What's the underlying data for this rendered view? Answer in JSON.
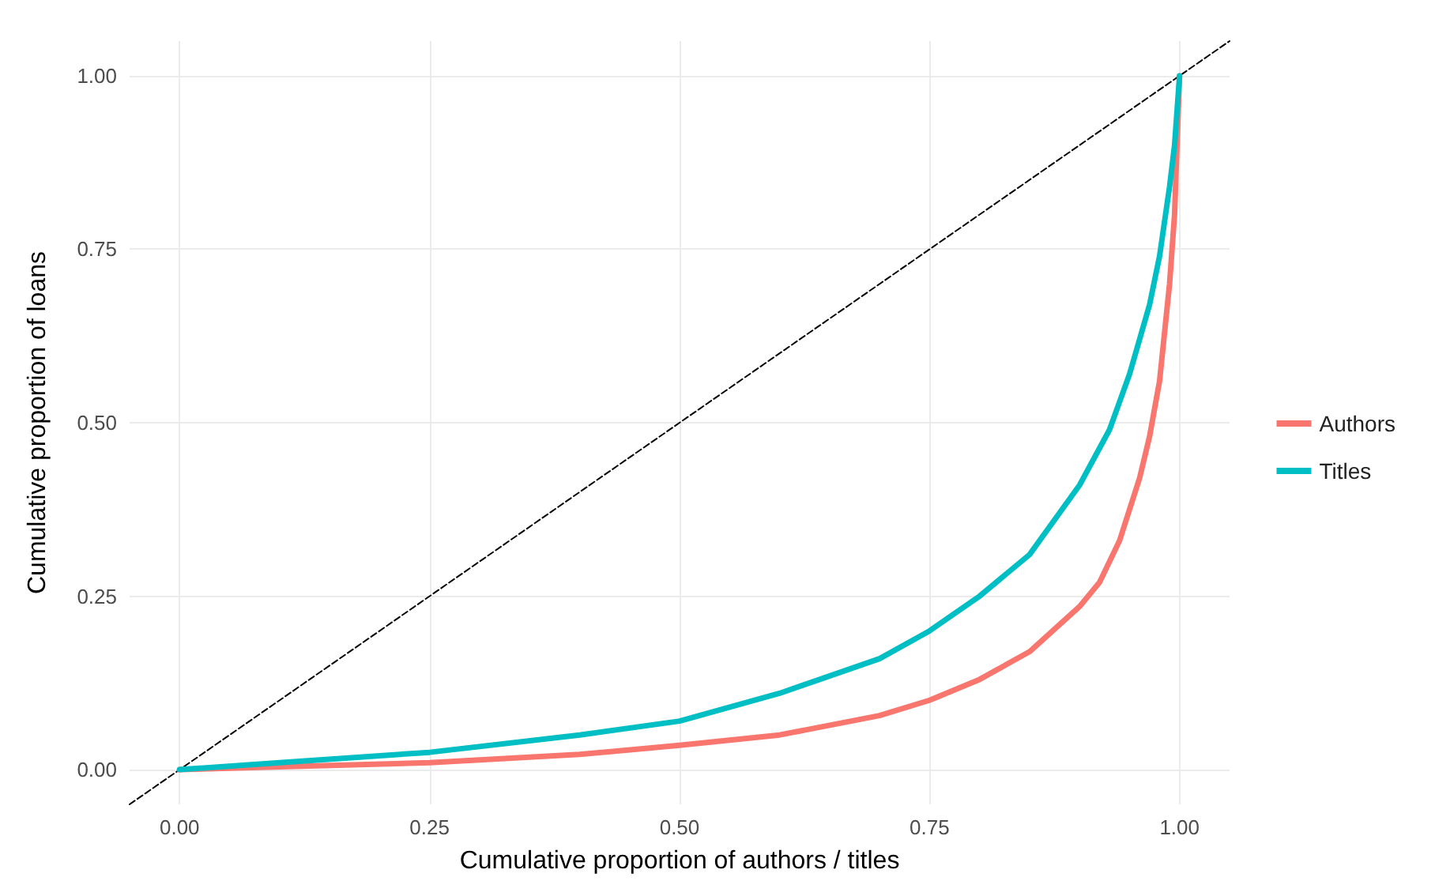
{
  "chart_data": {
    "type": "line",
    "xlabel": "Cumulative proportion of authors / titles",
    "ylabel": "Cumulative proportion of loans",
    "xlim": [
      -0.05,
      1.05
    ],
    "ylim": [
      -0.05,
      1.05
    ],
    "xticks": [
      {
        "value": 0,
        "label": "0.00"
      },
      {
        "value": 0.25,
        "label": "0.25"
      },
      {
        "value": 0.5,
        "label": "0.50"
      },
      {
        "value": 0.75,
        "label": "0.75"
      },
      {
        "value": 1,
        "label": "1.00"
      }
    ],
    "yticks": [
      {
        "value": 0,
        "label": "0.00"
      },
      {
        "value": 0.25,
        "label": "0.25"
      },
      {
        "value": 0.5,
        "label": "0.50"
      },
      {
        "value": 0.75,
        "label": "0.75"
      },
      {
        "value": 1,
        "label": "1.00"
      }
    ],
    "grid": true,
    "legend": "right",
    "marker": "none",
    "series": [
      {
        "color": "#000000",
        "line_style": "dashed",
        "x": [
          -0.05,
          1.05
        ],
        "values": [
          -0.05,
          1.05
        ]
      },
      {
        "name": "Authors",
        "color": "#f8766d",
        "x": [
          0,
          0.1,
          0.25,
          0.4,
          0.5,
          0.6,
          0.7,
          0.75,
          0.8,
          0.85,
          0.9,
          0.92,
          0.94,
          0.96,
          0.97,
          0.98,
          0.99,
          0.995,
          1
        ],
        "values": [
          0,
          0.004,
          0.01,
          0.022,
          0.035,
          0.05,
          0.078,
          0.1,
          0.13,
          0.17,
          0.235,
          0.27,
          0.33,
          0.42,
          0.48,
          0.56,
          0.7,
          0.8,
          1
        ]
      },
      {
        "name": "Titles",
        "color": "#00bfc4",
        "x": [
          0,
          0.1,
          0.25,
          0.4,
          0.5,
          0.6,
          0.7,
          0.75,
          0.8,
          0.85,
          0.9,
          0.93,
          0.95,
          0.97,
          0.98,
          0.99,
          0.995,
          1
        ],
        "values": [
          0,
          0.01,
          0.025,
          0.05,
          0.07,
          0.11,
          0.16,
          0.2,
          0.25,
          0.31,
          0.41,
          0.49,
          0.57,
          0.67,
          0.74,
          0.84,
          0.9,
          1
        ]
      }
    ]
  }
}
